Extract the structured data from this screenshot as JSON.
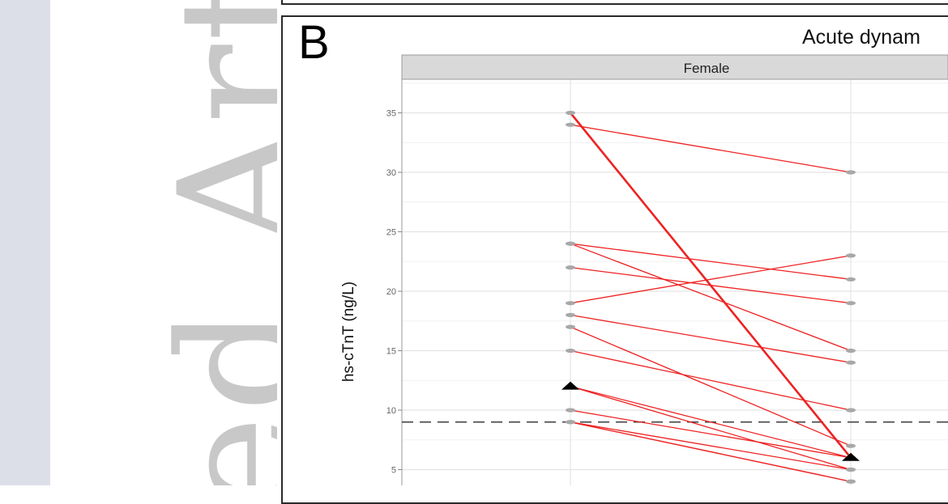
{
  "figure": {
    "panel_letter": "B",
    "title": "Acute dynam",
    "facet_label": "Female"
  },
  "watermark": {
    "text": "ed Art"
  },
  "chart_data": {
    "type": "line",
    "title": "Acute dynam",
    "ylabel": "hs-cTnT (ng/L)",
    "xlabel": "",
    "facet": "Female",
    "ylim": [
      3,
      38
    ],
    "y_ticks": [
      5,
      10,
      15,
      20,
      25,
      30,
      35
    ],
    "grid": true,
    "reference_line": 9,
    "series_color": "#ee2222",
    "point_color": "#a8a8a8",
    "median_marker_color": "#000000",
    "median_markers": [
      {
        "x": 0,
        "y": 12
      },
      {
        "x": 1,
        "y": 6
      }
    ],
    "pairs": [
      [
        35,
        6
      ],
      [
        34,
        30
      ],
      [
        24,
        21
      ],
      [
        24,
        15
      ],
      [
        22,
        19
      ],
      [
        19,
        23
      ],
      [
        18,
        14
      ],
      [
        17,
        7
      ],
      [
        15,
        10
      ],
      [
        12,
        6
      ],
      [
        12,
        5
      ],
      [
        10,
        6
      ],
      [
        9,
        4
      ],
      [
        9,
        5
      ],
      [
        9,
        4
      ]
    ]
  }
}
